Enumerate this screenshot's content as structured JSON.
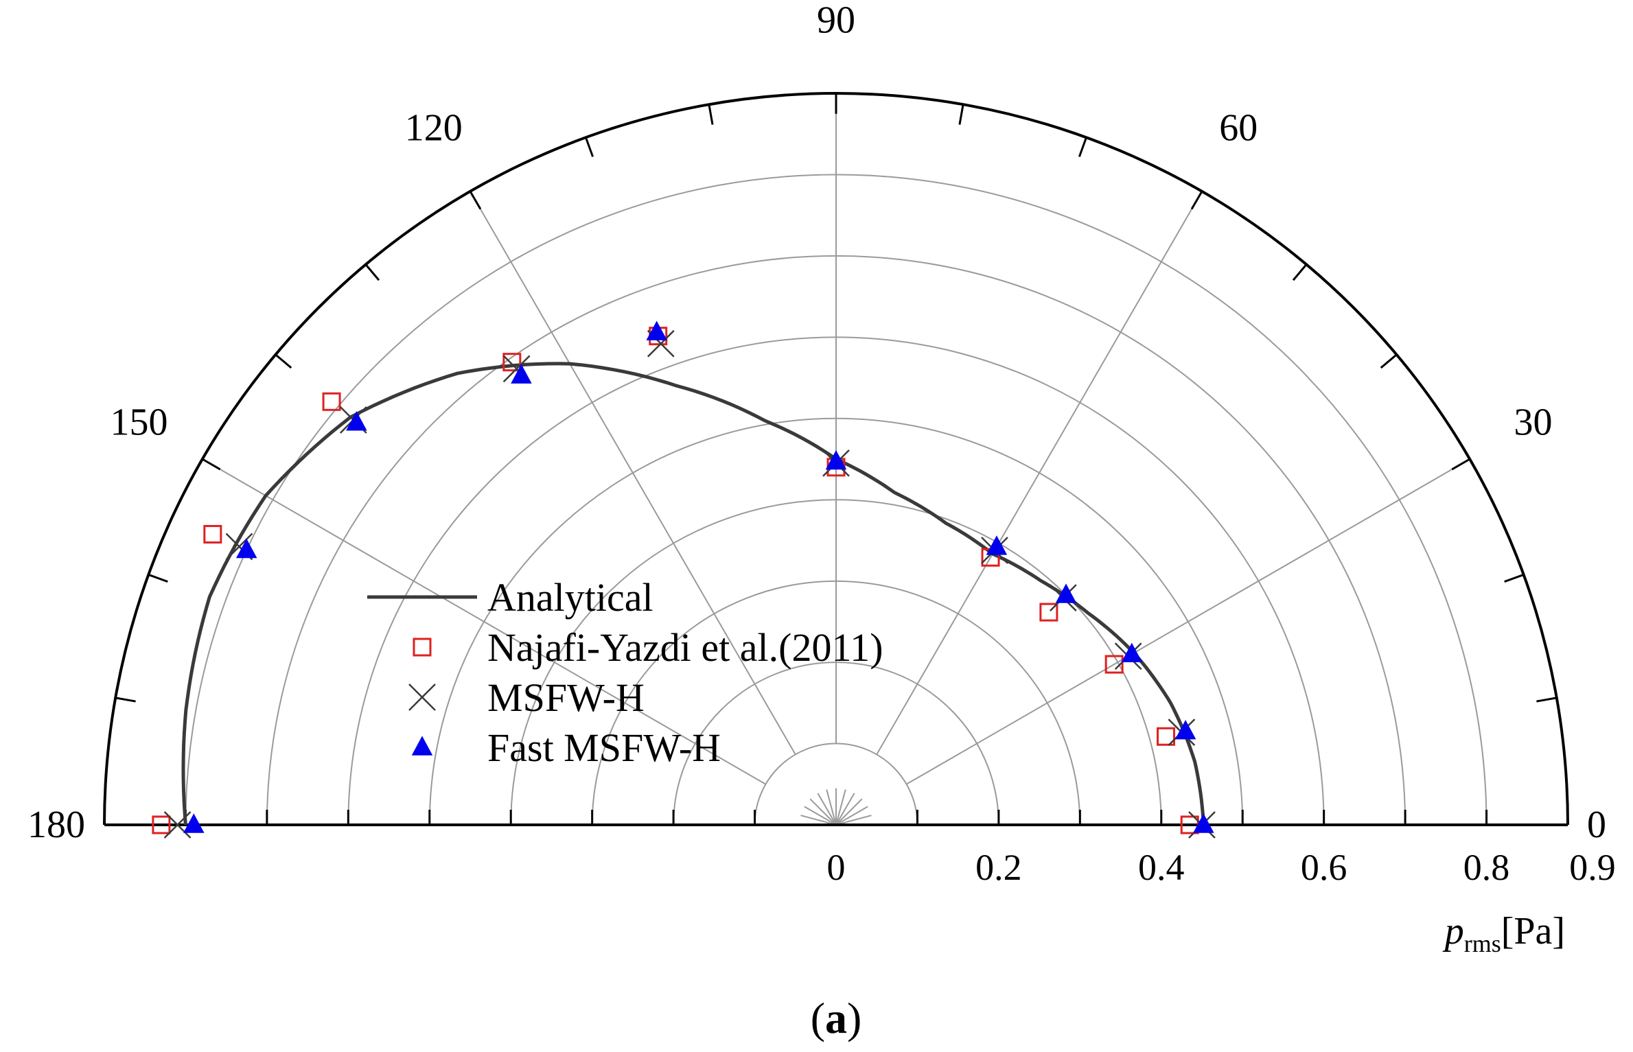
{
  "chart_data": {
    "type": "polar-scatter",
    "angular_range_deg": [
      0,
      180
    ],
    "angle_ticks": [
      0,
      30,
      60,
      90,
      120,
      150,
      180
    ],
    "radial_range": [
      0,
      0.9
    ],
    "radial_ticks": [
      0,
      0.2,
      0.4,
      0.6,
      0.8,
      0.9
    ],
    "radial_label": {
      "symbol": "p",
      "subscript": "rms",
      "unit": "[Pa]"
    },
    "caption": {
      "open": "(",
      "letter": "a",
      "close": ")"
    },
    "series": [
      {
        "name": "Analytical",
        "kind": "line",
        "color": "#3a3a3a",
        "points": [
          [
            0,
            0.452
          ],
          [
            10,
            0.448
          ],
          [
            20,
            0.438
          ],
          [
            30,
            0.423
          ],
          [
            40,
            0.405
          ],
          [
            50,
            0.392
          ],
          [
            60,
            0.385
          ],
          [
            70,
            0.395
          ],
          [
            80,
            0.415
          ],
          [
            90,
            0.45
          ],
          [
            100,
            0.505
          ],
          [
            110,
            0.575
          ],
          [
            120,
            0.655
          ],
          [
            130,
            0.725
          ],
          [
            140,
            0.78
          ],
          [
            150,
            0.81
          ],
          [
            160,
            0.82
          ],
          [
            170,
            0.812
          ],
          [
            180,
            0.8
          ]
        ]
      },
      {
        "name": "Najafi-Yazdi et al.(2011)",
        "kind": "marker",
        "marker": "square",
        "color": "#e02020",
        "points": [
          [
            0,
            0.435
          ],
          [
            15,
            0.42
          ],
          [
            30,
            0.395
          ],
          [
            45,
            0.37
          ],
          [
            60,
            0.38
          ],
          [
            90,
            0.44
          ],
          [
            110,
            0.64
          ],
          [
            125,
            0.695
          ],
          [
            140,
            0.81
          ],
          [
            155,
            0.846
          ],
          [
            180,
            0.83
          ]
        ]
      },
      {
        "name": "MSFW-H",
        "kind": "marker",
        "marker": "cross",
        "color": "#3a3a3a",
        "points": [
          [
            0,
            0.45
          ],
          [
            15,
            0.44
          ],
          [
            30,
            0.415
          ],
          [
            45,
            0.395
          ],
          [
            60,
            0.39
          ],
          [
            90,
            0.445
          ],
          [
            110,
            0.63
          ],
          [
            125,
            0.685
          ],
          [
            140,
            0.775
          ],
          [
            155,
            0.81
          ],
          [
            180,
            0.81
          ]
        ]
      },
      {
        "name": "Fast MSFW-H",
        "kind": "marker",
        "marker": "triangle",
        "color": "#0000ee",
        "points": [
          [
            0,
            0.452
          ],
          [
            15,
            0.445
          ],
          [
            30,
            0.42
          ],
          [
            45,
            0.4
          ],
          [
            60,
            0.395
          ],
          [
            90,
            0.447
          ],
          [
            110,
            0.645
          ],
          [
            125,
            0.675
          ],
          [
            140,
            0.77
          ],
          [
            155,
            0.8
          ],
          [
            180,
            0.79
          ]
        ]
      }
    ]
  }
}
